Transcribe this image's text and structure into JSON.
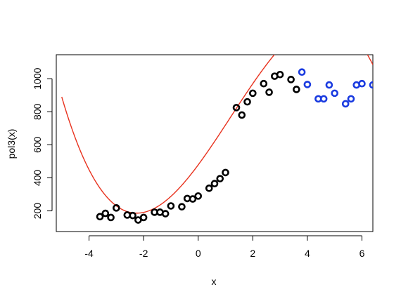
{
  "chart_data": {
    "type": "scatter",
    "title": "",
    "xlabel": "x",
    "ylabel": "pol3(x)",
    "xlim": [
      -5.2,
      6.4
    ],
    "ylim": [
      75,
      1145
    ],
    "xticks": [
      -4,
      -2,
      0,
      2,
      4,
      6
    ],
    "xtick_labels": [
      "-4",
      "-2",
      "0",
      "2",
      "4",
      "6"
    ],
    "yticks": [
      200,
      400,
      600,
      800,
      1000
    ],
    "ytick_labels": [
      "200",
      "400",
      "600",
      "800",
      "1000"
    ],
    "grid": false,
    "legend": "none",
    "series": [
      {
        "kind": "points",
        "color": "#000000",
        "x": [
          -3.6,
          -3.4,
          -3.2,
          -3.0,
          -2.6,
          -2.4,
          -2.2,
          -2.0,
          -1.6,
          -1.4,
          -1.2,
          -1.0,
          -0.6,
          -0.4,
          -0.2,
          0.0,
          0.4,
          0.6,
          0.8,
          1.0,
          1.4,
          1.6,
          1.8,
          2.0,
          2.4,
          2.6,
          2.8,
          3.0,
          3.4,
          3.6
        ],
        "y": [
          165,
          185,
          160,
          218,
          175,
          172,
          145,
          160,
          192,
          192,
          183,
          230,
          225,
          275,
          272,
          290,
          337,
          365,
          395,
          432,
          825,
          780,
          860,
          912,
          970,
          918,
          1015,
          1025,
          995,
          935
        ]
      },
      {
        "kind": "points",
        "color": "#1a3be0",
        "x": [
          3.8,
          4.0,
          4.4,
          4.6,
          4.8,
          5.0,
          5.4,
          5.6,
          5.8,
          6.0,
          6.4
        ],
        "y": [
          1040,
          965,
          878,
          878,
          962,
          912,
          848,
          878,
          962,
          970,
          962
        ]
      },
      {
        "kind": "curve",
        "color": "#e8321e",
        "polynomial": {
          "a": 478.38,
          "b": 223.19,
          "c": 25.5,
          "d": -7.12
        },
        "x_range": [
          -5.0,
          6.4
        ]
      }
    ]
  }
}
